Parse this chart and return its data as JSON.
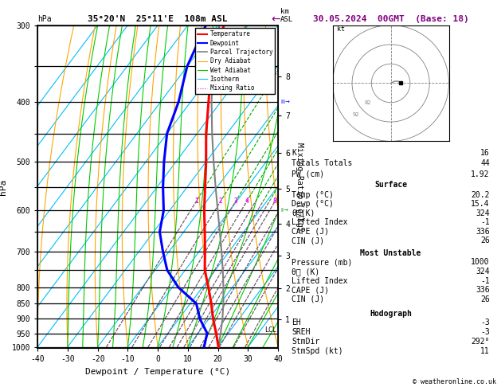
{
  "title_left": "35°20'N  25°11'E  108m ASL",
  "title_right": "30.05.2024  00GMT  (Base: 18)",
  "xlabel": "Dewpoint / Temperature (°C)",
  "ylabel_left": "hPa",
  "temp_range": [
    -40,
    40
  ],
  "pressure_ticks": [
    300,
    350,
    400,
    450,
    500,
    550,
    600,
    650,
    700,
    750,
    800,
    850,
    900,
    950,
    1000
  ],
  "pressure_major": [
    300,
    400,
    500,
    600,
    700,
    800,
    850,
    900,
    950,
    1000
  ],
  "isotherm_color": "#00bfff",
  "dry_adiabat_color": "#ffa500",
  "wet_adiabat_color": "#00cc00",
  "mixing_ratio_color": "#00aa00",
  "cape_dot_color": "#ff00ff",
  "temperature_data": {
    "pressure": [
      1000,
      950,
      900,
      850,
      800,
      750,
      700,
      650,
      600,
      550,
      500,
      450,
      400,
      350,
      300
    ],
    "temp": [
      20.2,
      16.0,
      11.4,
      7.0,
      2.0,
      -3.5,
      -8.0,
      -13.0,
      -18.5,
      -24.0,
      -30.0,
      -37.0,
      -44.0,
      -52.0,
      -58.0
    ]
  },
  "dewpoint_data": {
    "pressure": [
      1000,
      950,
      900,
      850,
      800,
      750,
      700,
      650,
      600,
      550,
      500,
      450,
      400,
      350,
      300
    ],
    "dewp": [
      15.4,
      13.0,
      7.0,
      2.0,
      -8.0,
      -16.0,
      -22.0,
      -28.0,
      -32.0,
      -38.0,
      -44.0,
      -50.0,
      -54.0,
      -60.0,
      -64.0
    ]
  },
  "parcel_data": {
    "pressure": [
      1000,
      950,
      900,
      850,
      800,
      750,
      700,
      650,
      600,
      550,
      500,
      450,
      400,
      350,
      300
    ],
    "temp": [
      20.2,
      17.5,
      14.5,
      11.0,
      7.0,
      2.5,
      -2.5,
      -8.0,
      -14.0,
      -20.5,
      -27.5,
      -35.0,
      -43.0,
      -51.5,
      -59.5
    ]
  },
  "km_labels": {
    "km": [
      1,
      2,
      3,
      4,
      5,
      6,
      7,
      8
    ],
    "pressure": [
      902,
      802,
      710,
      630,
      554,
      484,
      420,
      364
    ]
  },
  "lcl_pressure": 940,
  "mr_label_pressure": 580,
  "mr_labels": [
    1,
    2,
    3,
    4,
    8,
    10,
    20,
    25
  ],
  "stats": {
    "K": 16,
    "Totals_Totals": 44,
    "PW_cm": 1.92,
    "Surface_Temp": 20.2,
    "Surface_Dewp": 15.4,
    "Surface_theta_e": 324,
    "Surface_Lifted_Index": -1,
    "Surface_CAPE": 336,
    "Surface_CIN": 26,
    "MU_Pressure": 1000,
    "MU_theta_e": 324,
    "MU_Lifted_Index": -1,
    "MU_CAPE": 336,
    "MU_CIN": 26,
    "EH": -3,
    "SREH": -3,
    "StmDir": 292,
    "StmSpd": 11
  },
  "bg_color": "#ffffff",
  "temp_color": "#ff0000",
  "dewp_color": "#0000ff",
  "parcel_color": "#808080"
}
